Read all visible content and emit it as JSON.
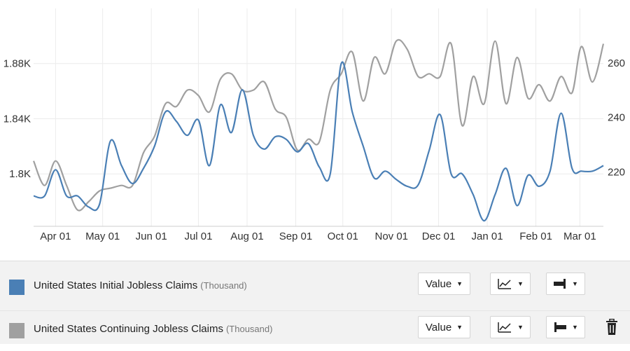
{
  "chart_data": {
    "type": "line",
    "x_ticks": [
      "Apr 01",
      "May 01",
      "Jun 01",
      "Jul 01",
      "Aug 01",
      "Sep 01",
      "Oct 01",
      "Nov 01",
      "Dec 01",
      "Jan 01",
      "Feb 01",
      "Mar 01"
    ],
    "y_left": {
      "ticks": [
        "1.8K",
        "1.84K",
        "1.88K"
      ],
      "values": [
        1800,
        1840,
        1880
      ],
      "range": [
        1762,
        1920
      ]
    },
    "y_right": {
      "ticks": [
        "220",
        "240",
        "260"
      ],
      "values": [
        220,
        240,
        260
      ],
      "range": [
        200,
        280
      ]
    },
    "grid": true,
    "series": [
      {
        "name": "United States Initial Jobless Claims",
        "unit": "(Thousand)",
        "axis": "left",
        "color": "#4a7fb5",
        "x": [
          "Mar 18",
          "Mar 25",
          "Apr 01",
          "Apr 08",
          "Apr 15",
          "Apr 22",
          "Apr 29",
          "May 06",
          "May 13",
          "May 20",
          "May 27",
          "Jun 03",
          "Jun 10",
          "Jun 17",
          "Jun 24",
          "Jul 01",
          "Jul 08",
          "Jul 15",
          "Jul 22",
          "Jul 29",
          "Aug 05",
          "Aug 12",
          "Aug 19",
          "Aug 26",
          "Sep 02",
          "Sep 09",
          "Sep 16",
          "Sep 23",
          "Sep 30",
          "Oct 07",
          "Oct 14",
          "Oct 21",
          "Oct 28",
          "Nov 04",
          "Nov 11",
          "Nov 18",
          "Nov 25",
          "Dec 02",
          "Dec 09",
          "Dec 16",
          "Dec 23",
          "Dec 30",
          "Jan 06",
          "Jan 13",
          "Jan 20",
          "Jan 27",
          "Feb 03",
          "Feb 10",
          "Feb 17",
          "Feb 24",
          "Mar 02",
          "Mar 09",
          "Mar 16"
        ],
        "values": [
          1784,
          1784,
          1803,
          1784,
          1784,
          1776,
          1778,
          1824,
          1806,
          1793,
          1804,
          1820,
          1845,
          1838,
          1828,
          1839,
          1806,
          1850,
          1830,
          1861,
          1828,
          1818,
          1827,
          1825,
          1816,
          1822,
          1805,
          1800,
          1880,
          1845,
          1820,
          1797,
          1802,
          1796,
          1791,
          1792,
          1817,
          1843,
          1800,
          1800,
          1785,
          1766,
          1785,
          1804,
          1777,
          1799,
          1791,
          1802,
          1844,
          1804,
          1802,
          1802,
          1806
        ]
      },
      {
        "name": "United States Continuing Jobless Claims",
        "unit": "(Thousand)",
        "axis": "right",
        "color": "#a0a0a0",
        "x": [
          "Mar 18",
          "Mar 25",
          "Apr 01",
          "Apr 08",
          "Apr 15",
          "Apr 22",
          "Apr 29",
          "May 06",
          "May 13",
          "May 20",
          "May 27",
          "Jun 03",
          "Jun 10",
          "Jun 17",
          "Jun 24",
          "Jul 01",
          "Jul 08",
          "Jul 15",
          "Jul 22",
          "Jul 29",
          "Aug 05",
          "Aug 12",
          "Aug 19",
          "Aug 26",
          "Sep 02",
          "Sep 09",
          "Sep 16",
          "Sep 23",
          "Sep 30",
          "Oct 07",
          "Oct 14",
          "Oct 21",
          "Oct 28",
          "Nov 04",
          "Nov 11",
          "Nov 18",
          "Nov 25",
          "Dec 02",
          "Dec 09",
          "Dec 16",
          "Dec 23",
          "Dec 30",
          "Jan 06",
          "Jan 13",
          "Jan 20",
          "Jan 27",
          "Feb 03",
          "Feb 10",
          "Feb 17",
          "Feb 24",
          "Mar 02",
          "Mar 09",
          "Mar 16"
        ],
        "values": [
          224,
          215,
          224,
          215,
          206,
          209,
          213,
          214,
          215,
          215,
          227,
          233,
          245,
          244,
          250,
          248,
          242,
          254,
          256,
          250,
          250,
          253,
          243,
          240,
          228,
          232,
          231,
          250,
          256,
          264,
          246,
          262,
          256,
          268,
          265,
          255,
          256,
          255,
          267,
          237,
          255,
          245,
          268,
          245,
          262,
          247,
          252,
          246,
          255,
          249,
          266,
          253,
          267
        ]
      }
    ]
  },
  "legend": {
    "items": [
      {
        "label": "United States Initial Jobless Claims",
        "unit": "(Thousand)",
        "color": "#4a7fb5",
        "value_label": "Value"
      },
      {
        "label": "United States Continuing Jobless Claims",
        "unit": "(Thousand)",
        "color": "#a0a0a0",
        "value_label": "Value"
      }
    ]
  },
  "icons": {
    "chart_type": "line-chart-icon",
    "axis_right": "axis-right-icon",
    "axis_left": "axis-left-icon",
    "caret": "caret-down-icon",
    "remove": "trash-icon"
  }
}
